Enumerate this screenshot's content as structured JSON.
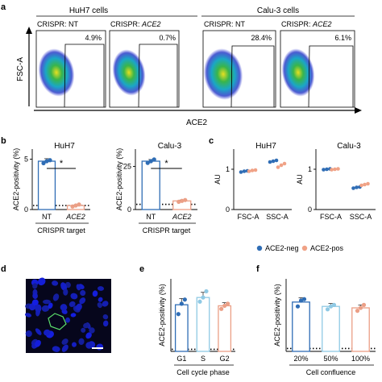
{
  "panel_labels": {
    "a": "a",
    "b": "b",
    "c": "c",
    "d": "d",
    "e": "e",
    "f": "f"
  },
  "colors": {
    "blue": "#2f6db5",
    "orange": "#eb9f86",
    "light_blue": "#8fc9e4",
    "dot_blue": "#2f6db5",
    "dot_orange": "#f0a286",
    "dotted_line": "#000000",
    "microscopy_bg": "#06061c"
  },
  "flow": {
    "groups": [
      "HuH7 cells",
      "Calu-3 cells"
    ],
    "y_label": "FSC-A",
    "x_label": "ACE2",
    "panels": [
      {
        "title_prefix": "CRISPR: ",
        "title_target": "NT",
        "percent": "4.9%"
      },
      {
        "title_prefix": "CRISPR: ",
        "title_target": "ACE2",
        "percent": "0.7%"
      },
      {
        "title_prefix": "CRISPR: ",
        "title_target": "NT",
        "percent": "28.4%"
      },
      {
        "title_prefix": "CRISPR: ",
        "title_target": "ACE2",
        "percent": "6.1%"
      }
    ]
  },
  "legend": {
    "items": [
      "ACE2-neg",
      "ACE2-pos"
    ]
  },
  "microscopy": {
    "icon": "cell-nuclei-fluorescence-image"
  },
  "chart_data": [
    {
      "id": "b1",
      "type": "bar",
      "title": "HuH7",
      "ylabel": "ACE2-positivity (%)",
      "xlabel": "CRISPR target",
      "categories": [
        "NT",
        "ACE2"
      ],
      "category_italic": [
        false,
        true
      ],
      "values": [
        4.8,
        0.4
      ],
      "errors": [
        0.25,
        0.05
      ],
      "points": [
        [
          4.6,
          4.8,
          4.9
        ],
        [
          0.3,
          0.4,
          0.5
        ]
      ],
      "bar_colors": [
        "blue",
        "orange"
      ],
      "ylim": [
        0,
        6
      ],
      "yticks": [
        0,
        5
      ],
      "baseline": 0.4,
      "significance": "*"
    },
    {
      "id": "b2",
      "type": "bar",
      "title": "Calu-3",
      "ylabel": "ACE2-positivity (%)",
      "xlabel": "CRISPR target",
      "categories": [
        "NT",
        "ACE2"
      ],
      "category_italic": [
        false,
        true
      ],
      "values": [
        28,
        5
      ],
      "errors": [
        1,
        0.5
      ],
      "points": [
        [
          27,
          28,
          29
        ],
        [
          4.5,
          5,
          5.5
        ]
      ],
      "bar_colors": [
        "blue",
        "orange"
      ],
      "ylim": [
        0,
        35
      ],
      "yticks": [
        0,
        25
      ],
      "baseline": 3,
      "significance": "*"
    },
    {
      "id": "c1",
      "type": "bar",
      "title": "HuH7",
      "ylabel": "AU",
      "categories": [
        "FSC-A",
        "SSC-A"
      ],
      "series": [
        {
          "name": "ACE2-neg",
          "values": [
            0.95,
            1.2
          ],
          "points": [
            [
              0.93,
              0.95,
              0.96
            ],
            [
              1.18,
              1.2,
              1.22
            ]
          ]
        },
        {
          "name": "ACE2-pos",
          "values": [
            0.97,
            1.1
          ],
          "points": [
            [
              0.95,
              0.97,
              0.98
            ],
            [
              1.05,
              1.1,
              1.14
            ]
          ]
        }
      ],
      "ylim": [
        0,
        1.5
      ],
      "yticks": [
        0,
        1
      ],
      "legend": "bottom"
    },
    {
      "id": "c2",
      "type": "bar",
      "title": "Calu-3",
      "ylabel": "AU",
      "categories": [
        "FSC-A",
        "SSC-A"
      ],
      "series": [
        {
          "name": "ACE2-neg",
          "values": [
            1.0,
            0.55
          ],
          "points": [
            [
              0.99,
              1.0,
              1.01
            ],
            [
              0.53,
              0.55,
              0.56
            ]
          ]
        },
        {
          "name": "ACE2-pos",
          "values": [
            1.0,
            0.62
          ],
          "points": [
            [
              0.99,
              1.0,
              1.01
            ],
            [
              0.6,
              0.62,
              0.64
            ]
          ]
        }
      ],
      "ylim": [
        0,
        1.5
      ],
      "yticks": [
        0,
        1
      ],
      "legend": "bottom"
    },
    {
      "id": "e",
      "type": "bar",
      "title": "",
      "ylabel": "ACE2-positivity (%)",
      "xlabel": "Cell cycle phase",
      "categories": [
        "G1",
        "S",
        "G2"
      ],
      "values": [
        4.5,
        5.2,
        4.4
      ],
      "errors": [
        0.6,
        0.5,
        0.3
      ],
      "points": [
        [
          3.6,
          4.6,
          5.0
        ],
        [
          4.8,
          5.2,
          5.8
        ],
        [
          4.1,
          4.4,
          4.6
        ]
      ],
      "bar_colors": [
        "blue",
        "light_blue",
        "orange"
      ],
      "ylim": [
        0,
        7
      ],
      "baseline": 0.2
    },
    {
      "id": "f",
      "type": "bar",
      "title": "",
      "ylabel": "ACE2-positivity (%)",
      "xlabel": "Cell confluence",
      "categories": [
        "20%",
        "50%",
        "100%"
      ],
      "values": [
        3.4,
        3.1,
        3.0
      ],
      "errors": [
        0.3,
        0.2,
        0.2
      ],
      "points": [
        [
          3.1,
          3.5,
          3.6
        ],
        [
          2.9,
          3.1,
          3.2
        ],
        [
          2.8,
          3.0,
          3.2
        ]
      ],
      "bar_colors": [
        "blue",
        "light_blue",
        "orange"
      ],
      "ylim": [
        0,
        5
      ],
      "baseline": 0.2
    }
  ]
}
